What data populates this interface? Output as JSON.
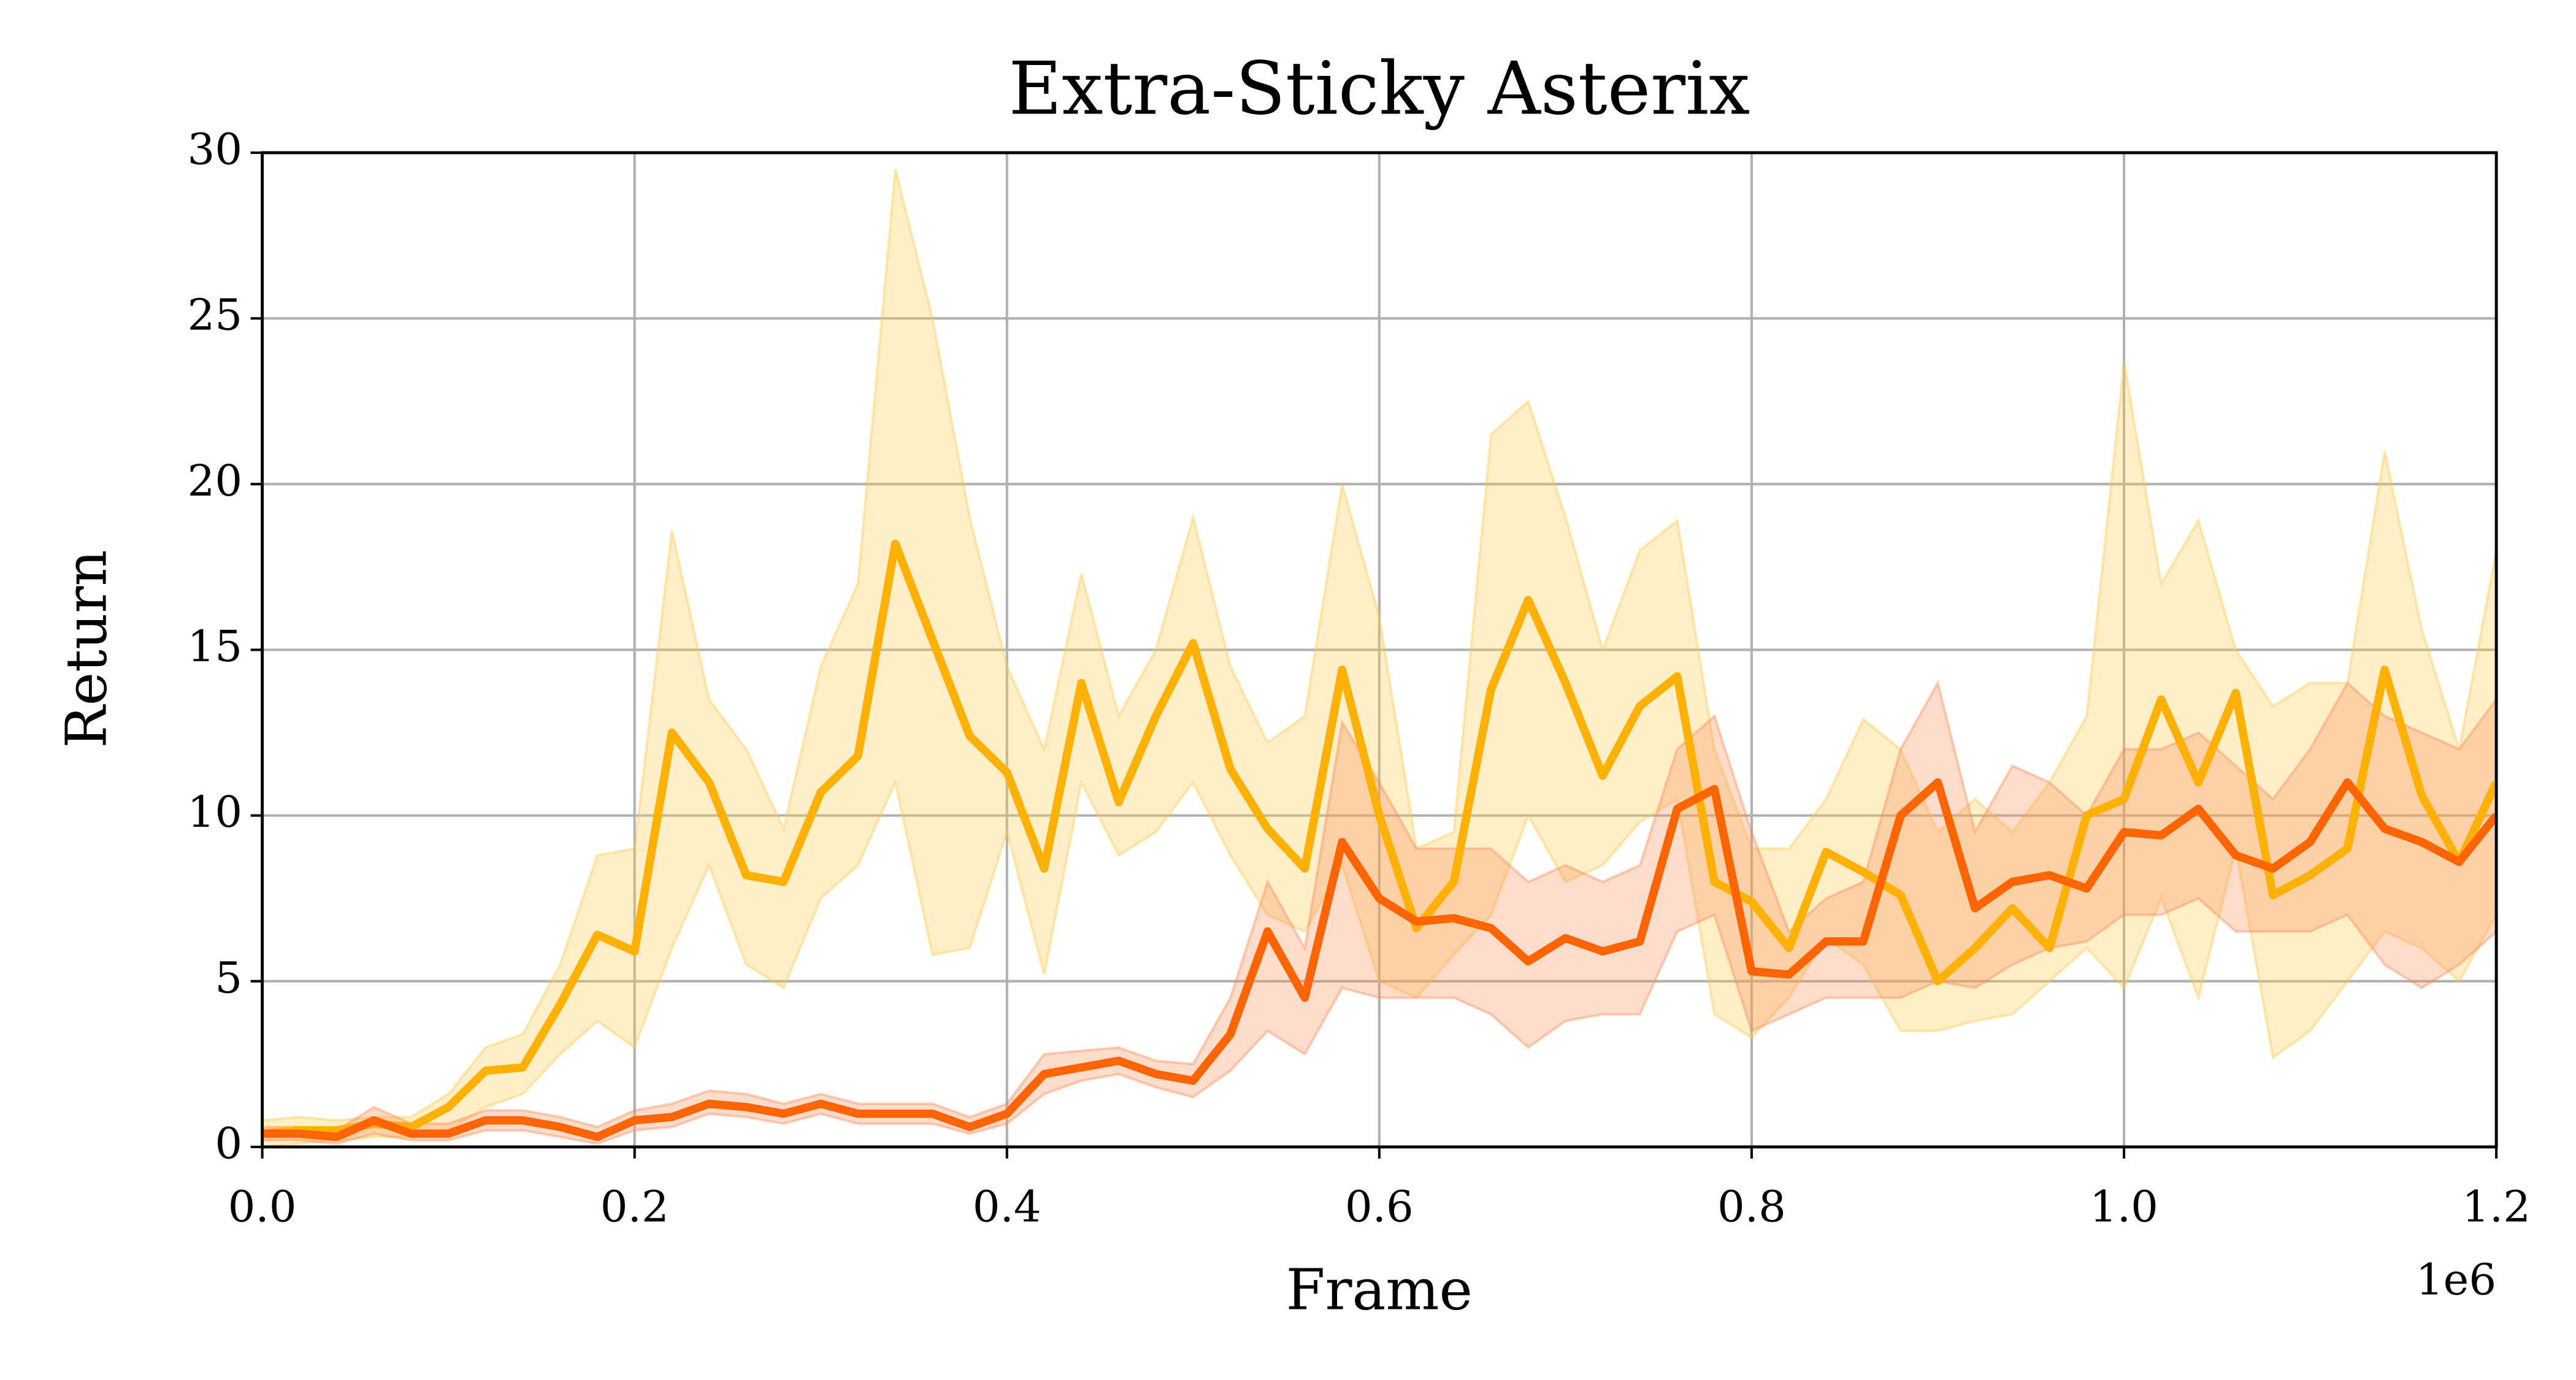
{
  "chart_data": {
    "type": "line",
    "title": "Extra-Sticky Asterix",
    "xlabel": "Frame",
    "ylabel": "Return",
    "x_offset_label": "1e6",
    "x": [
      0,
      20000,
      40000,
      60000,
      80000,
      100000,
      120000,
      140000,
      160000,
      180000,
      200000,
      220000,
      240000,
      260000,
      280000,
      300000,
      320000,
      340000,
      360000,
      380000,
      400000,
      420000,
      440000,
      460000,
      480000,
      500000,
      520000,
      540000,
      560000,
      580000,
      600000,
      620000,
      640000,
      660000,
      680000,
      700000,
      720000,
      740000,
      760000,
      780000,
      800000,
      820000,
      840000,
      860000,
      880000,
      900000,
      920000,
      940000,
      960000,
      980000,
      1000000,
      1020000,
      1040000,
      1060000,
      1080000,
      1100000,
      1120000,
      1140000,
      1160000,
      1180000,
      1200000
    ],
    "series": [
      {
        "color": "#ffb000",
        "band_color": "#ffc94a",
        "values": [
          0.4,
          0.5,
          0.5,
          0.7,
          0.6,
          1.2,
          2.3,
          2.4,
          4.3,
          6.4,
          5.9,
          12.5,
          11,
          8.2,
          8,
          10.7,
          11.8,
          18.2,
          15.3,
          12.4,
          11.3,
          8.4,
          14,
          10.4,
          13,
          15.2,
          11.4,
          9.6,
          8.4,
          14.4,
          10,
          6.6,
          8,
          13.8,
          16.5,
          14,
          11.2,
          13.3,
          14.2,
          8,
          7.4,
          6,
          8.9,
          8.3,
          7.6,
          5,
          6,
          7.2,
          6,
          10,
          10.5,
          13.5,
          11,
          13.7,
          7.6,
          8.2,
          9,
          14.4,
          10.6,
          8.6,
          11
        ],
        "lower": [
          0,
          0.1,
          0.2,
          0.3,
          0.3,
          0.5,
          1.2,
          1.6,
          2.8,
          3.8,
          3,
          6,
          8.5,
          5.5,
          4.8,
          7.5,
          8.5,
          11,
          5.8,
          6,
          9.5,
          5.2,
          11,
          8.8,
          9.5,
          11,
          8.8,
          7,
          6.5,
          8.5,
          5,
          4.5,
          5.8,
          7,
          10,
          8,
          8.5,
          9.8,
          10.5,
          4,
          3.3,
          4.5,
          6.3,
          5.5,
          3.5,
          3.5,
          3.8,
          4,
          5,
          6,
          4.8,
          7.5,
          4.5,
          9,
          2.7,
          3.5,
          5,
          6.5,
          6,
          5,
          7
        ],
        "upper": [
          0.8,
          0.9,
          0.8,
          0.9,
          0.9,
          1.6,
          3,
          3.4,
          5.5,
          8.8,
          9,
          18.6,
          13.5,
          12,
          9.6,
          14.5,
          17,
          29.5,
          25,
          19,
          14.5,
          12,
          17.3,
          13,
          15,
          19,
          14.5,
          12.2,
          13,
          20,
          16,
          9,
          9.5,
          21.5,
          22.5,
          19,
          15,
          18,
          18.9,
          12,
          9,
          9,
          10.5,
          12.9,
          12,
          9.5,
          10.5,
          9.5,
          11,
          13,
          23.7,
          17,
          18.9,
          15,
          13.3,
          14,
          14,
          21,
          15.6,
          12,
          18
        ]
      },
      {
        "color": "#ff6400",
        "band_color": "#f98a55",
        "values": [
          0.4,
          0.4,
          0.3,
          0.8,
          0.4,
          0.4,
          0.8,
          0.8,
          0.6,
          0.3,
          0.8,
          0.9,
          1.3,
          1.2,
          1.0,
          1.3,
          1.0,
          1.0,
          1.0,
          0.6,
          1.0,
          2.2,
          2.4,
          2.6,
          2.2,
          2.0,
          3.4,
          6.5,
          4.5,
          9.2,
          7.5,
          6.8,
          6.9,
          6.6,
          5.6,
          6.3,
          5.9,
          6.2,
          10.2,
          10.8,
          5.3,
          5.2,
          6.2,
          6.2,
          10,
          11,
          7.2,
          8,
          8.2,
          7.8,
          9.5,
          9.4,
          10.2,
          8.8,
          8.4,
          9.2,
          11,
          9.6,
          9.2,
          8.6,
          10
        ],
        "lower": [
          0.2,
          0.2,
          0.1,
          0.4,
          0.2,
          0.2,
          0.5,
          0.5,
          0.3,
          0.1,
          0.5,
          0.6,
          1,
          0.9,
          0.7,
          1,
          0.7,
          0.7,
          0.7,
          0.4,
          0.7,
          1.6,
          2,
          2.2,
          1.8,
          1.5,
          2.3,
          3.5,
          2.8,
          4.8,
          4.5,
          4.5,
          4.5,
          4,
          3,
          3.8,
          4,
          4,
          6.5,
          7,
          3.5,
          4,
          4.5,
          4.5,
          4.5,
          5,
          4.8,
          5.5,
          6,
          6.2,
          7,
          7,
          7.5,
          6.5,
          6.5,
          6.5,
          7,
          5.5,
          4.8,
          5.5,
          6.5
        ],
        "upper": [
          0.6,
          0.6,
          0.5,
          1.2,
          0.7,
          0.7,
          1.1,
          1.1,
          0.9,
          0.6,
          1.1,
          1.3,
          1.7,
          1.6,
          1.3,
          1.6,
          1.3,
          1.3,
          1.3,
          0.9,
          1.3,
          2.8,
          2.9,
          3,
          2.6,
          2.5,
          4.5,
          8,
          6,
          12.8,
          11,
          9,
          9,
          9,
          8,
          8.5,
          8,
          8.5,
          12,
          13,
          9.5,
          6.5,
          7.5,
          8,
          12,
          14,
          9.5,
          11.5,
          11,
          10,
          12,
          12,
          12.5,
          11.5,
          10.5,
          12,
          14,
          13,
          12.5,
          12,
          13.5
        ]
      }
    ],
    "xlim": [
      0,
      1200000
    ],
    "xticks": [
      {
        "value": 0,
        "label": "0.0"
      },
      {
        "value": 200000,
        "label": "0.2"
      },
      {
        "value": 400000,
        "label": "0.4"
      },
      {
        "value": 600000,
        "label": "0.6"
      },
      {
        "value": 800000,
        "label": "0.8"
      },
      {
        "value": 1000000,
        "label": "1.0"
      },
      {
        "value": 1200000,
        "label": "1.2"
      }
    ],
    "ylim": [
      0,
      30
    ],
    "yticks": [
      0,
      5,
      10,
      15,
      20,
      25,
      30
    ],
    "grid": true
  }
}
